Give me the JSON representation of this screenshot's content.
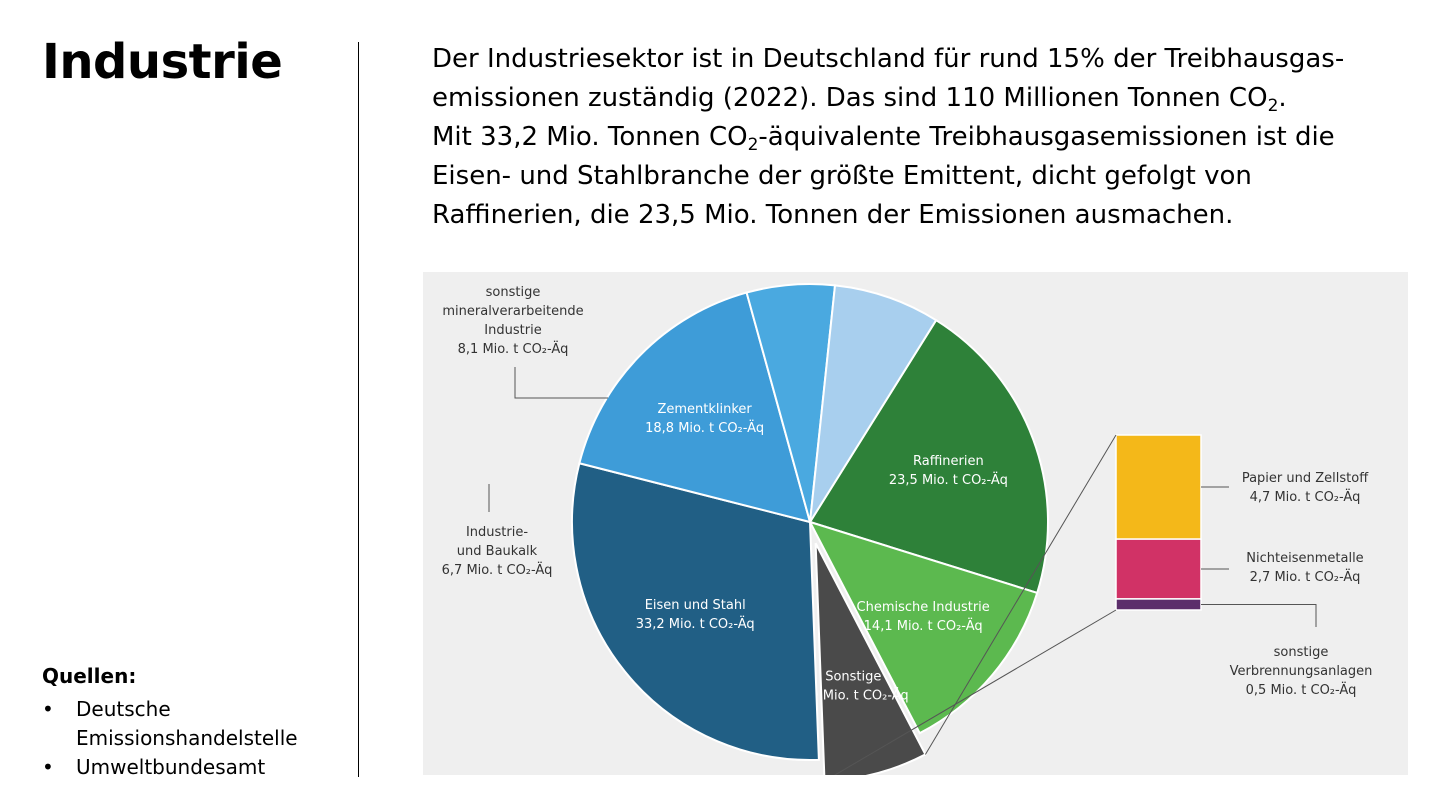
{
  "page": {
    "title": "Industrie",
    "intro": {
      "line1": "Der Industriesektor ist in Deutschland für rund 15% der Treibhausgas-",
      "line2a": "emissionen zuständig (2022). Das sind 110 Millionen Tonnen CO",
      "line2sub": "2",
      "line2b": ".",
      "line3a": "Mit 33,2 Mio. Tonnen  CO",
      "line3sub": "2",
      "line3b": "-äquivalente Treibhausgasemissionen ist die",
      "line4": "Eisen- und Stahlbranche der größte Emittent, dicht gefolgt von",
      "line5": "Raffinerien, die 23,5 Mio. Tonnen der Emissionen ausmachen."
    },
    "sources": {
      "heading": "Quellen:",
      "items": [
        "Deutsche Emissionshandelstelle",
        "Umweltbundesamt"
      ]
    }
  },
  "chart_data": {
    "type": "pie",
    "unit": "Mio. t CO₂-Äq",
    "slices": [
      {
        "name": "Raffinerien",
        "label_lines": [
          "Raffinerien",
          "23,5 Mio. t CO₂-Äq"
        ],
        "value": 23.5,
        "color": "#2e8139",
        "text_color": "#ffffff"
      },
      {
        "name": "Chemische Industrie",
        "label_lines": [
          "Chemische Industrie",
          "14,1 Mio. t CO₂-Äq"
        ],
        "value": 14.1,
        "color": "#5cb94f",
        "text_color": "#ffffff"
      },
      {
        "name": "Sonstige",
        "label_lines": [
          "Sonstige",
          "7,9 Mio. t CO₂-Äq"
        ],
        "value": 7.9,
        "color": "#4a4a4a",
        "text_color": "#ffffff",
        "exploded": true
      },
      {
        "name": "Eisen und Stahl",
        "label_lines": [
          "Eisen und Stahl",
          "33,2 Mio. t CO₂-Äq"
        ],
        "value": 33.2,
        "color": "#215f85",
        "text_color": "#ffffff"
      },
      {
        "name": "Zementklinker",
        "label_lines": [
          "Zementklinker",
          "18,8 Mio. t CO₂-Äq"
        ],
        "value": 18.8,
        "color": "#3e9cd8",
        "text_color": "#ffffff"
      },
      {
        "name": "Industrie- und Baukalk",
        "label_lines": [
          "Industrie-",
          "und Baukalk",
          "6,7 Mio. t CO₂-Äq"
        ],
        "value": 6.7,
        "color": "#4aa9e0",
        "text_color": "#333333",
        "external": true
      },
      {
        "name": "sonstige mineralverarbeitende Industrie",
        "label_lines": [
          "sonstige",
          "mineralverarbeitende",
          "Industrie",
          "8,1 Mio. t CO₂-Äq"
        ],
        "value": 8.1,
        "color": "#a8cfee",
        "text_color": "#333333",
        "external": true
      }
    ],
    "breakdown": {
      "of": "Sonstige",
      "segments": [
        {
          "name": "Papier und Zellstoff",
          "label_lines": [
            "Papier und Zellstoff",
            "4,7 Mio. t CO₂-Äq"
          ],
          "value": 4.7,
          "color": "#f4b819"
        },
        {
          "name": "Nichteisenmetalle",
          "label_lines": [
            "Nichteisenmetalle",
            "2,7 Mio. t CO₂-Äq"
          ],
          "value": 2.7,
          "color": "#d13266"
        },
        {
          "name": "sonstige Verbrennungsanlagen",
          "label_lines": [
            "sonstige",
            "Verbrennungsanlagen",
            "0,5 Mio. t CO₂-Äq"
          ],
          "value": 0.5,
          "color": "#5c2e6b"
        }
      ]
    }
  }
}
